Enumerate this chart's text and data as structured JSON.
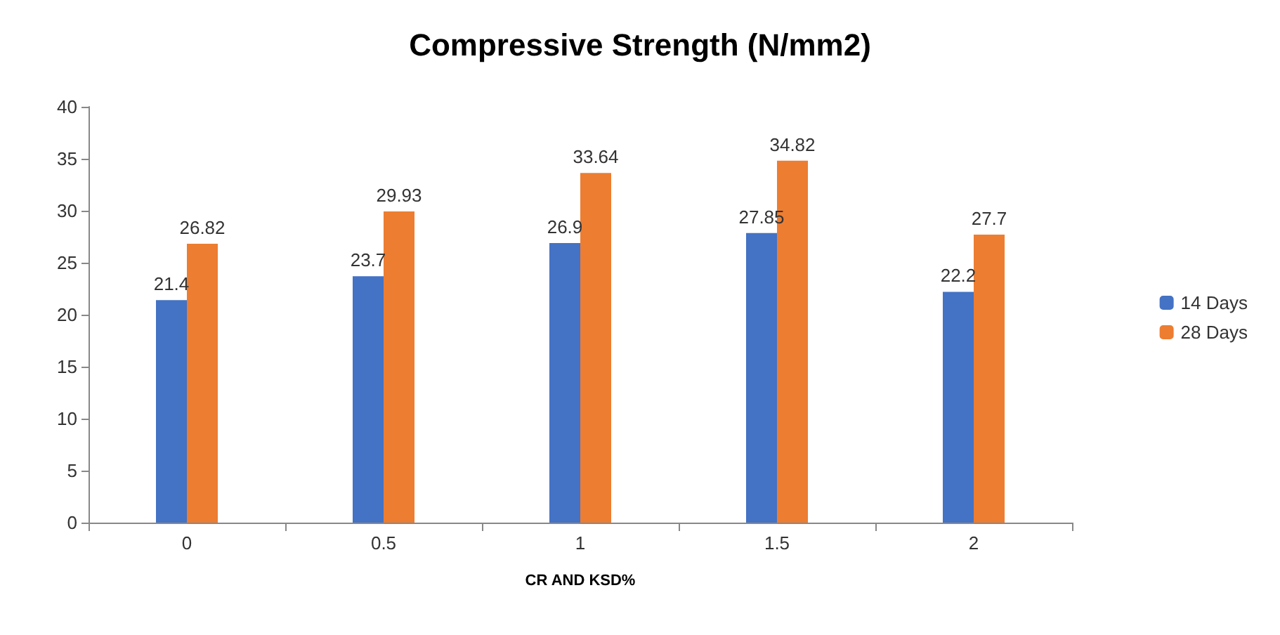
{
  "chart_data": {
    "type": "bar",
    "title": "Compressive Strength (N/mm2)",
    "xlabel": "CR AND KSD%",
    "categories": [
      "0",
      "0.5",
      "1",
      "1.5",
      "2"
    ],
    "series": [
      {
        "name": "14 Days",
        "color": "#4472c4",
        "values": [
          21.4,
          23.7,
          26.9,
          27.85,
          22.2
        ]
      },
      {
        "name": "28 Days",
        "color": "#ed7d31",
        "values": [
          26.82,
          29.93,
          33.64,
          34.82,
          27.7
        ]
      }
    ],
    "ylim": [
      0,
      40
    ],
    "yticks": [
      0,
      5,
      10,
      15,
      20,
      25,
      30,
      35,
      40
    ],
    "grid": false,
    "legend": "right",
    "data_labels": true
  }
}
